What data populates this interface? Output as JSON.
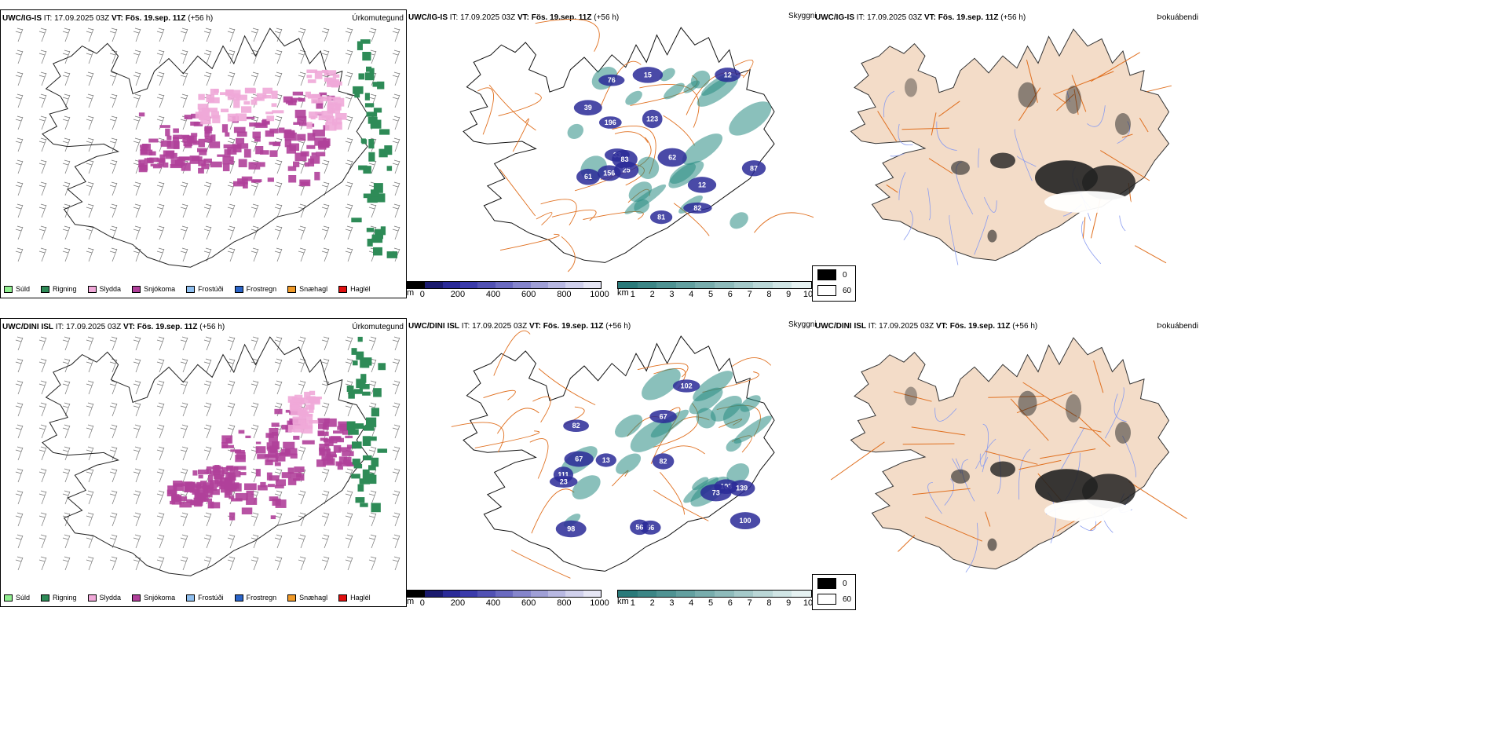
{
  "rows": [
    {
      "model": "UWC/IG-IS",
      "it_label": "IT:",
      "it_value": "17.09.2025 03Z",
      "vt_label": "VT:",
      "vt_value": "Fös. 19.sep. 11Z",
      "lead": "(+56 h)",
      "cloud_labels": [
        "39",
        "156",
        "76",
        "87",
        "61",
        "25",
        "12",
        "82",
        "196",
        "15",
        "81",
        "12",
        "123",
        "33",
        "83",
        "62"
      ]
    },
    {
      "model": "UWC/DINI ISL",
      "it_label": "IT:",
      "it_value": "17.09.2025 03Z",
      "vt_label": "VT:",
      "vt_value": "Fös. 19.sep. 11Z",
      "lead": "(+56 h)",
      "cloud_labels": [
        "103",
        "82",
        "82",
        "73",
        "98",
        "111",
        "13",
        "56",
        "67",
        "139",
        "100",
        "102",
        "56",
        "67",
        "23"
      ]
    }
  ],
  "panel_titles": {
    "precip_type": "Úrkomutegund",
    "visibility": "Skyggni",
    "fog": "Þokuábendi"
  },
  "precip_legend": [
    {
      "label": "Súld",
      "color": "#90ee90"
    },
    {
      "label": "Rigning",
      "color": "#2e8b57"
    },
    {
      "label": "Slydda",
      "color": "#f0a8d8"
    },
    {
      "label": "Snjókoma",
      "color": "#b0409a"
    },
    {
      "label": "Frostúði",
      "color": "#8fbfef"
    },
    {
      "label": "Frostregn",
      "color": "#2a64c8"
    },
    {
      "label": "Snæhagl",
      "color": "#f09a28"
    },
    {
      "label": "Haglél",
      "color": "#e01010"
    }
  ],
  "cloud_base_scale": {
    "unit": "m",
    "ticks": [
      "0",
      "200",
      "400",
      "600",
      "800",
      "1000"
    ],
    "colors": [
      "#000000",
      "#1a1a6e",
      "#2a2a98",
      "#3b3bab",
      "#5252b4",
      "#6a6ac0",
      "#8585cc",
      "#9f9fd6",
      "#b8b8e2",
      "#d0d0ec",
      "#e6e6f5"
    ]
  },
  "visibility_scale": {
    "unit": "km",
    "ticks": [
      "1",
      "2",
      "3",
      "4",
      "5",
      "6",
      "7",
      "8",
      "9",
      "10"
    ],
    "colors": [
      "#2a7a7a",
      "#3c8686",
      "#4f9393",
      "#63a0a0",
      "#78adad",
      "#8ebbbb",
      "#a4c9c9",
      "#bad7d7",
      "#d0e5e5",
      "#e6f2f2"
    ]
  },
  "fog_legend": {
    "values": [
      "0",
      "60"
    ],
    "colors": [
      "#000000",
      "#ffffff"
    ]
  },
  "colors": {
    "land_fog": "#f3dcc8",
    "roads": "#e07020",
    "rivers": "#8a9cf0",
    "precip_snow": "#b0409a",
    "precip_sleet": "#f0a8d8",
    "precip_rain": "#2e8b57",
    "cloud_low": "#2a2a98",
    "visibility_low": "#2a8c84"
  }
}
